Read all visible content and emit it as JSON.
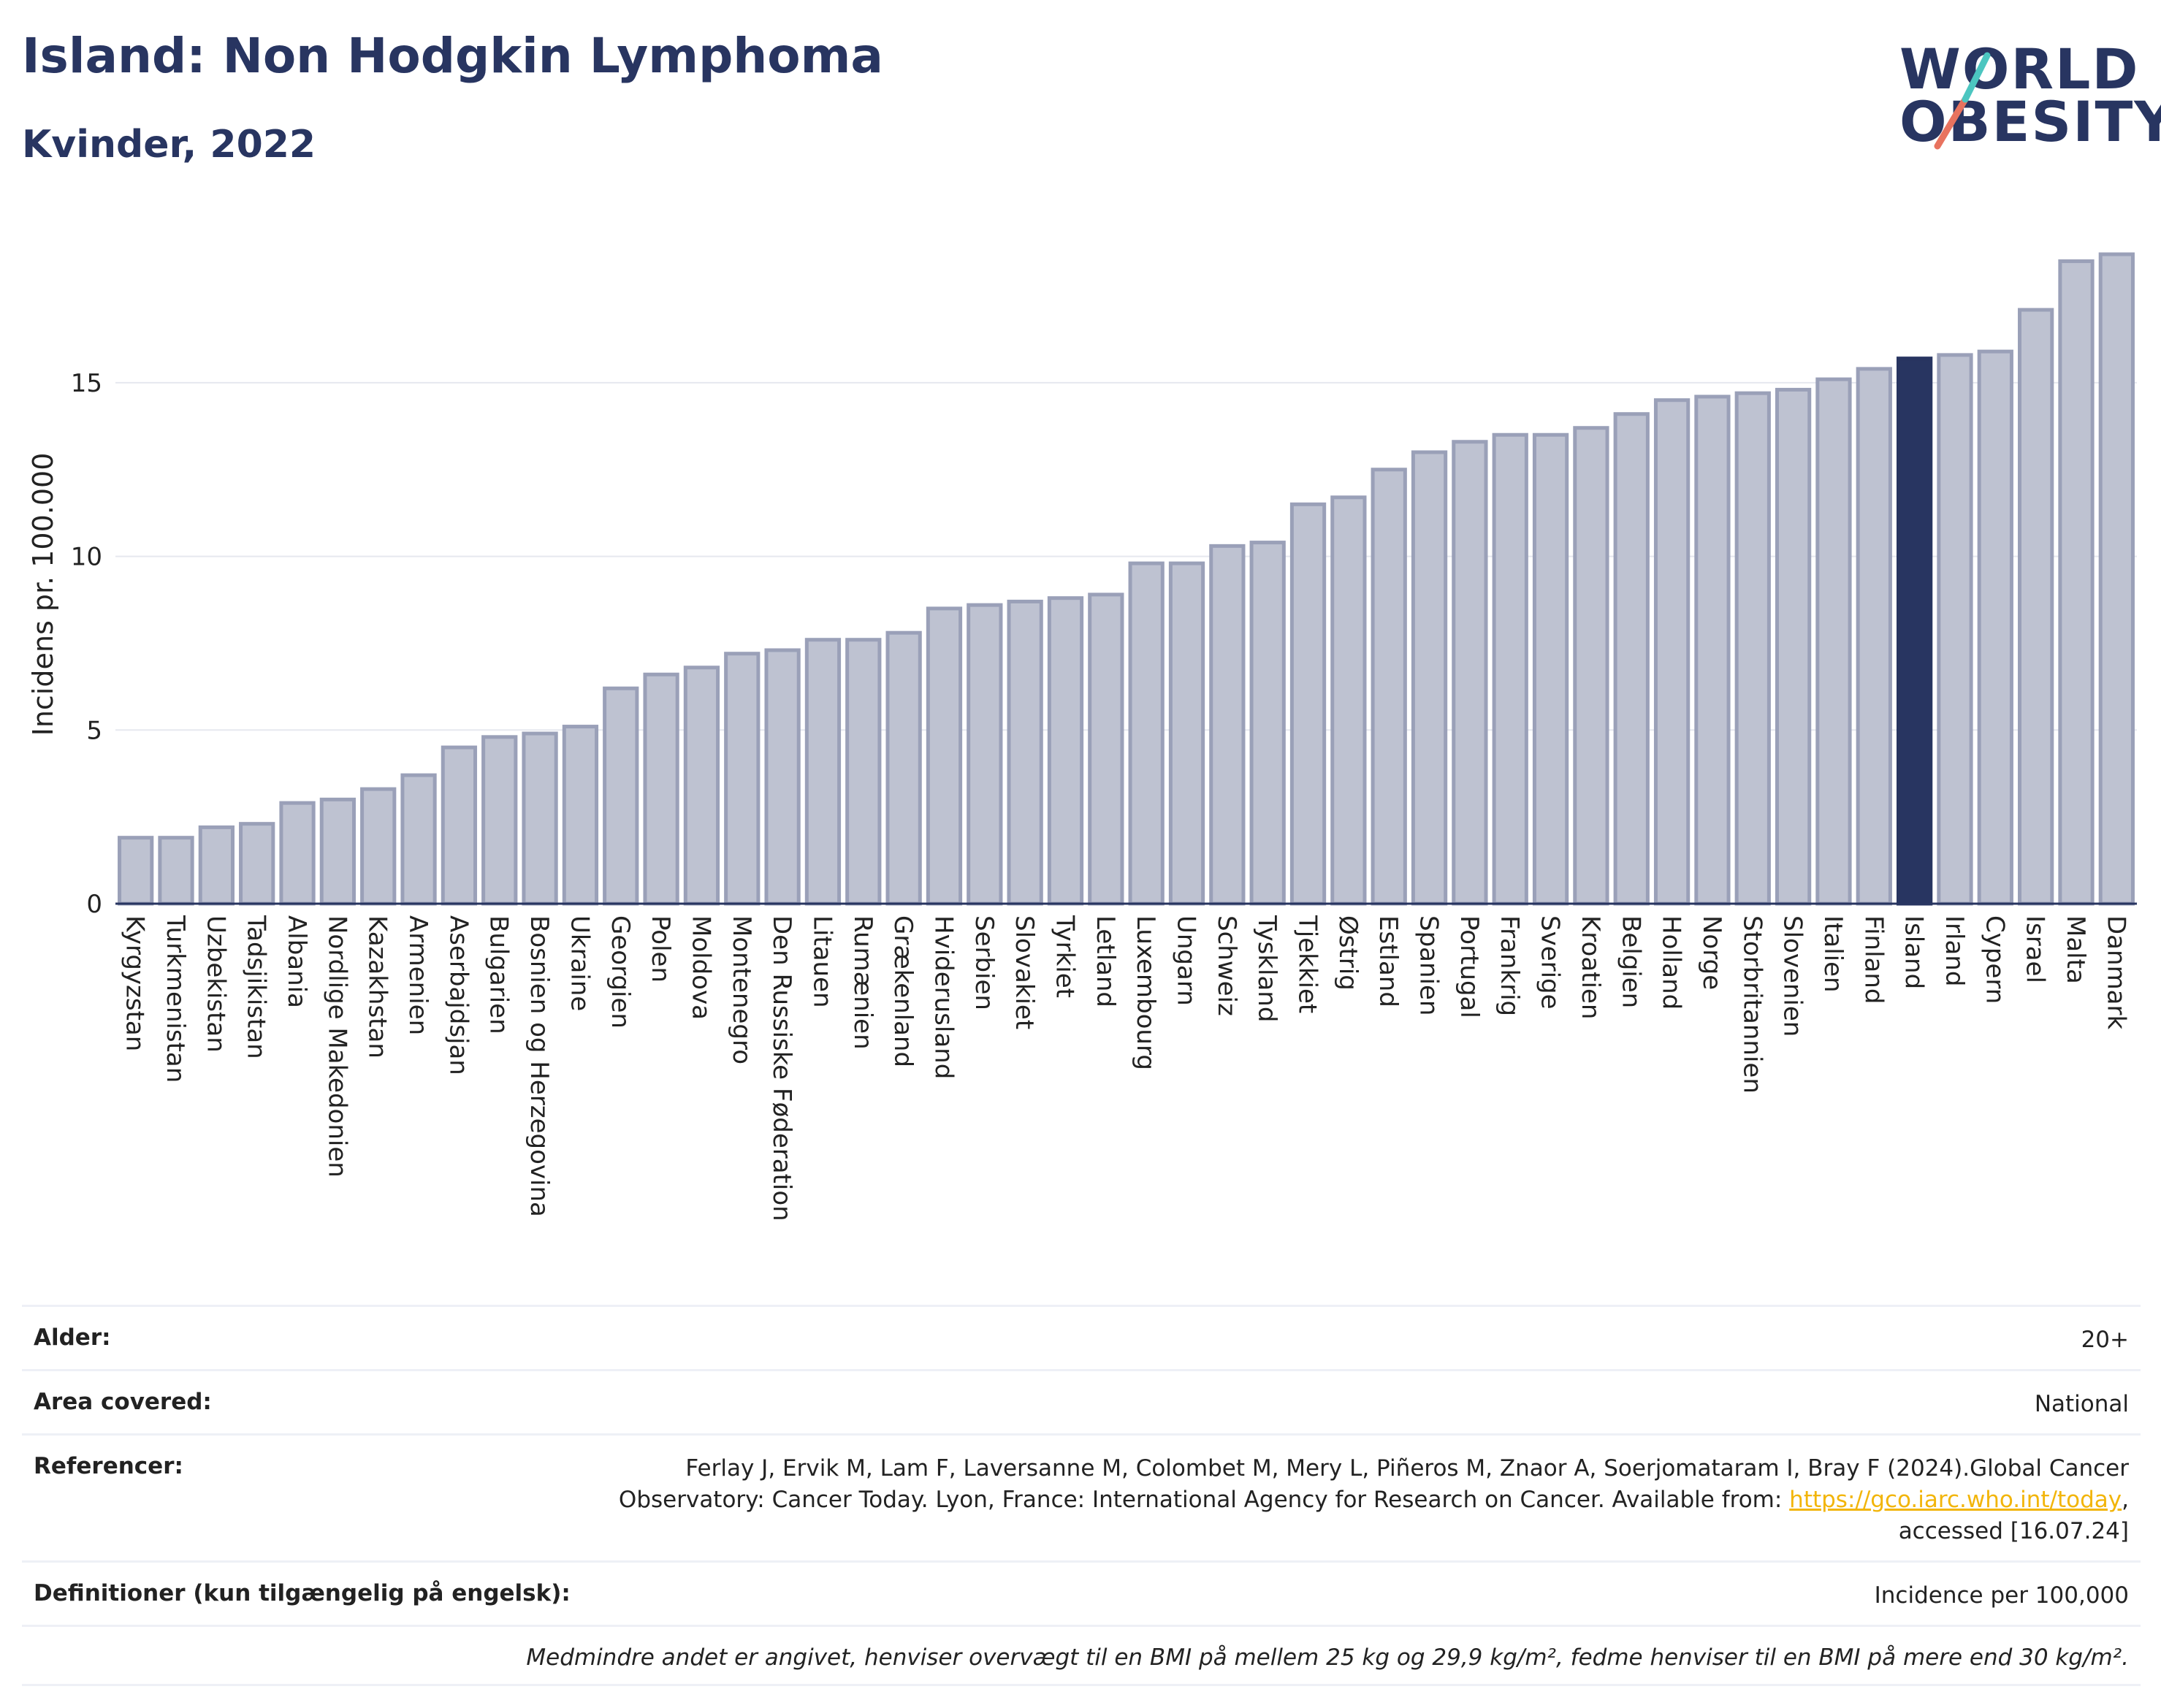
{
  "header": {
    "title": "Island: Non Hodgkin Lymphoma",
    "subtitle": "Kvinder, 2022"
  },
  "logo": {
    "line1": "WORLD",
    "line2": "OBESITY"
  },
  "colors": {
    "bar": "#bec2d1",
    "bar_stroke": "#9aa0b8",
    "highlight": "#283561",
    "text_dark": "#283561",
    "link": "#f2b50a"
  },
  "chart_data": {
    "type": "bar",
    "ylabel": "Incidens pr. 100.000",
    "xlabel": "",
    "ylim": [
      0,
      19.5
    ],
    "yticks": [
      0,
      5,
      10,
      15
    ],
    "grid": true,
    "highlight": "Island",
    "categories": [
      "Kyrgyzstan",
      "Turkmenistan",
      "Uzbekistan",
      "Tadsjikistan",
      "Albania",
      "Nordlige Makedonien",
      "Kazakhstan",
      "Armenien",
      "Aserbajdsjan",
      "Bulgarien",
      "Bosnien og Herzegovina",
      "Ukraine",
      "Georgien",
      "Polen",
      "Moldova",
      "Montenegro",
      "Den Russiske Føderation",
      "Litauen",
      "Rumænien",
      "Grækenland",
      "Hviderusland",
      "Serbien",
      "Slovakiet",
      "Tyrkiet",
      "Letland",
      "Luxembourg",
      "Ungarn",
      "Schweiz",
      "Tyskland",
      "Tjekkiet",
      "Østrig",
      "Estland",
      "Spanien",
      "Portugal",
      "Frankrig",
      "Sverige",
      "Kroatien",
      "Belgien",
      "Holland",
      "Norge",
      "Storbritannien",
      "Slovenien",
      "Italien",
      "Finland",
      "Island",
      "Irland",
      "Cypern",
      "Israel",
      "Malta",
      "Danmark"
    ],
    "values": [
      1.9,
      1.9,
      2.2,
      2.3,
      2.9,
      3.0,
      3.3,
      3.7,
      4.5,
      4.8,
      4.9,
      5.1,
      6.2,
      6.6,
      6.8,
      7.2,
      7.3,
      7.6,
      7.6,
      7.8,
      8.5,
      8.6,
      8.7,
      8.8,
      8.9,
      9.8,
      9.8,
      10.3,
      10.4,
      11.5,
      11.7,
      12.5,
      13.0,
      13.3,
      13.5,
      13.5,
      13.7,
      14.1,
      14.5,
      14.6,
      14.7,
      14.8,
      15.1,
      15.4,
      15.7,
      15.8,
      15.9,
      17.1,
      18.5,
      18.7
    ]
  },
  "info": {
    "age_label": "Alder:",
    "age_value": "20+",
    "area_label": "Area covered:",
    "area_value": "National",
    "ref_label": "Referencer:",
    "ref_text_1": "Ferlay J, Ervik M, Lam F, Laversanne M, Colombet M, Mery L, Piñeros M, Znaor A, Soerjomataram I, Bray F (2024).Global Cancer Observatory: Cancer Today. Lyon, France: International Agency for Research on Cancer. Available from: ",
    "ref_link": "https://gco.iarc.who.int/today",
    "ref_text_2": ", accessed [16.07.24]",
    "def_label": "Definitioner (kun tilgængelig på engelsk):",
    "def_value": "Incidence per 100,000",
    "note": "Medmindre andet er angivet, henviser overvægt til en BMI på mellem 25 kg og 29,9 kg/m², fedme henviser til en BMI på mere end 30 kg/m²."
  }
}
